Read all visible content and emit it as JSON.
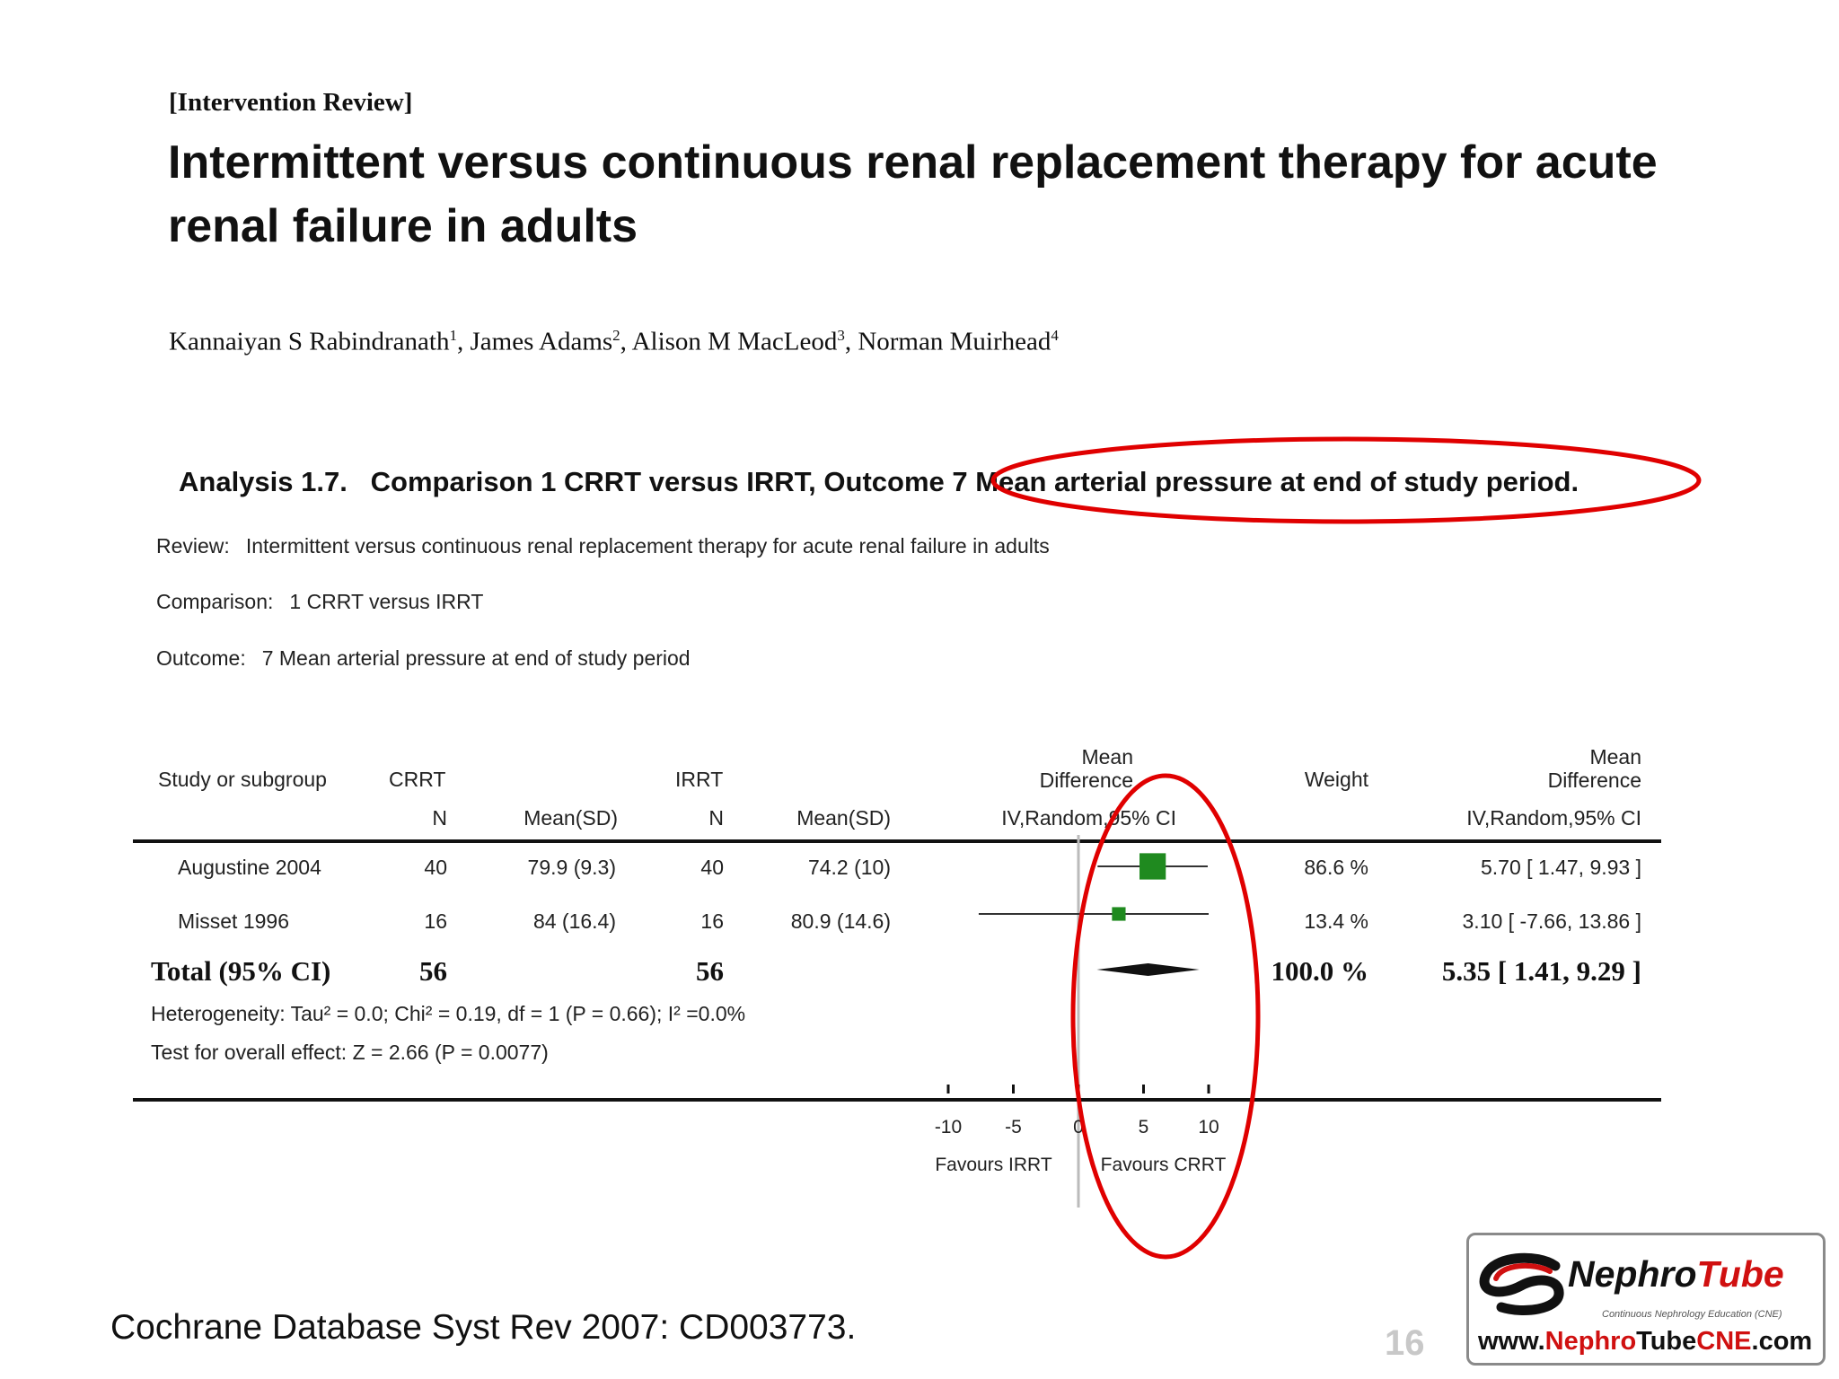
{
  "paper": {
    "review_type": "[Intervention Review]",
    "title": "Intermittent versus continuous renal replacement therapy for acute renal failure in adults",
    "authors": [
      {
        "name": "Kannaiyan S Rabindranath",
        "sup": "1"
      },
      {
        "name": "James Adams",
        "sup": "2"
      },
      {
        "name": "Alison M MacLeod",
        "sup": "3"
      },
      {
        "name": "Norman Muirhead",
        "sup": "4"
      }
    ]
  },
  "analysis": {
    "heading": "Analysis 1.7.   Comparison 1 CRRT versus IRRT, Outcome 7 Mean arterial pressure at end of study period.",
    "review_label": "Review:",
    "review_value": "Intermittent versus continuous renal replacement therapy for acute renal failure in adults",
    "comparison_label": "Comparison:",
    "comparison_value": "1 CRRT versus IRRT",
    "outcome_label": "Outcome:",
    "outcome_value": "7 Mean arterial pressure at end of study period"
  },
  "table": {
    "headers": {
      "study": "Study or subgroup",
      "crrt": "CRRT",
      "irrt": "IRRT",
      "n": "N",
      "mean_sd": "Mean(SD)",
      "md_line1": "Mean",
      "md_line2": "Difference",
      "md_method": "IV,Random,95% CI",
      "weight": "Weight"
    },
    "rows": [
      {
        "study": "Augustine 2004",
        "crrt_n": "40",
        "crrt_mean": "79.9 (9.3)",
        "irrt_n": "40",
        "irrt_mean": "74.2 (10)",
        "weight": "86.6 %",
        "md": "5.70 [ 1.47, 9.93 ]"
      },
      {
        "study": "Misset 1996",
        "crrt_n": "16",
        "crrt_mean": "84 (16.4)",
        "irrt_n": "16",
        "irrt_mean": "80.9 (14.6)",
        "weight": "13.4 %",
        "md": "3.10 [ -7.66, 13.86 ]"
      }
    ],
    "total": {
      "label": "Total (95% CI)",
      "crrt_n": "56",
      "irrt_n": "56",
      "weight": "100.0 %",
      "md": "5.35 [ 1.41, 9.29 ]"
    },
    "heterogeneity": "Heterogeneity: Tau² = 0.0; Chi² = 0.19, df = 1 (P = 0.66); I² =0.0%",
    "overall_effect": "Test for overall effect: Z = 2.66 (P = 0.0077)"
  },
  "chart_data": {
    "type": "scatter",
    "x_ticks": [
      -10,
      -5,
      0,
      5,
      10
    ],
    "x_tick_labels": [
      "-10",
      "-5",
      "0",
      "5",
      "10"
    ],
    "xlim": [
      -10,
      10
    ],
    "favours_left": "Favours IRRT",
    "favours_right": "Favours CRRT",
    "studies": [
      {
        "name": "Augustine 2004",
        "mean": 5.7,
        "lower": 1.47,
        "upper": 9.93,
        "weight": 86.6
      },
      {
        "name": "Misset 1996",
        "mean": 3.1,
        "lower": -7.66,
        "upper": 13.86,
        "weight": 13.4
      }
    ],
    "pooled": {
      "mean": 5.35,
      "lower": 1.41,
      "upper": 9.29
    },
    "colors": {
      "box": "#1f8a1f",
      "annotation": "#e00000"
    }
  },
  "footer": {
    "citation": "Cochrane Database Syst Rev 2007: CD003773.",
    "page_number": "16"
  },
  "logo": {
    "word_a": "Nephro",
    "word_b": "Tube",
    "tagline": "Continuous Nephrology Education (CNE)",
    "url_a": "www.",
    "url_b": "Nephro",
    "url_c": "Tube",
    "url_d": "CNE",
    "url_e": ".com"
  }
}
